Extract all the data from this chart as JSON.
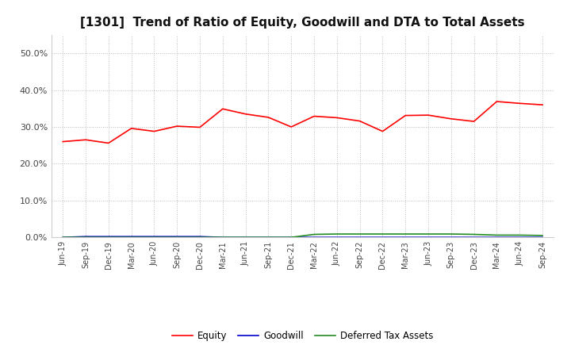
{
  "title": "[1301]  Trend of Ratio of Equity, Goodwill and DTA to Total Assets",
  "x_labels": [
    "Jun-19",
    "Sep-19",
    "Dec-19",
    "Mar-20",
    "Jun-20",
    "Sep-20",
    "Dec-20",
    "Mar-21",
    "Jun-21",
    "Sep-21",
    "Dec-21",
    "Mar-22",
    "Jun-22",
    "Sep-22",
    "Dec-22",
    "Mar-23",
    "Jun-23",
    "Sep-23",
    "Dec-23",
    "Mar-24",
    "Jun-24",
    "Sep-24"
  ],
  "equity": [
    0.26,
    0.265,
    0.256,
    0.296,
    0.288,
    0.302,
    0.299,
    0.349,
    0.335,
    0.326,
    0.3,
    0.329,
    0.325,
    0.316,
    0.288,
    0.331,
    0.332,
    0.322,
    0.315,
    0.369,
    0.364,
    0.36
  ],
  "goodwill": [
    0.0,
    0.002,
    0.002,
    0.002,
    0.002,
    0.002,
    0.002,
    0.0,
    0.0,
    0.0,
    0.0,
    0.0,
    0.0,
    0.0,
    0.0,
    0.0,
    0.0,
    0.0,
    0.0,
    0.0,
    0.0,
    0.0
  ],
  "dta": [
    0.0,
    0.0,
    0.0,
    0.0,
    0.0,
    0.0,
    0.0,
    0.0,
    0.0,
    0.0,
    0.0,
    0.008,
    0.009,
    0.009,
    0.009,
    0.009,
    0.009,
    0.009,
    0.008,
    0.006,
    0.006,
    0.005
  ],
  "equity_color": "#FF0000",
  "goodwill_color": "#0000CD",
  "dta_color": "#228B22",
  "ylim": [
    0.0,
    0.55
  ],
  "yticks": [
    0.0,
    0.1,
    0.2,
    0.3,
    0.4,
    0.5
  ],
  "background_color": "#FFFFFF",
  "plot_bg_color": "#FFFFFF",
  "grid_color": "#BBBBBB",
  "title_fontsize": 11,
  "legend_labels": [
    "Equity",
    "Goodwill",
    "Deferred Tax Assets"
  ]
}
